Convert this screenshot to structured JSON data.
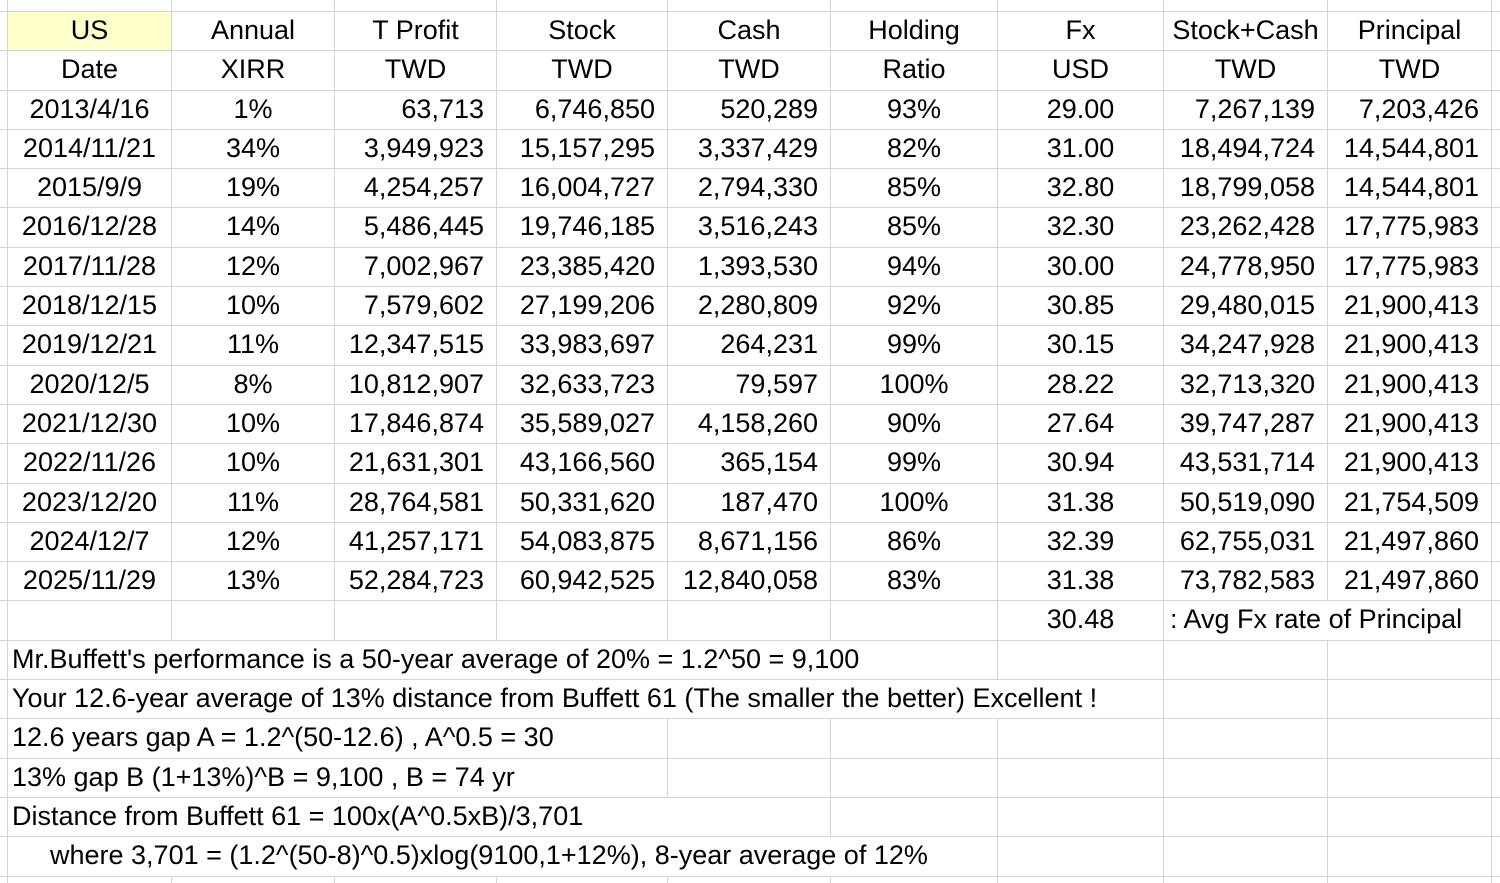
{
  "sheet": {
    "accent_yellow": "#ffffcc",
    "grid_color": "#d4d4d4",
    "header_row1": [
      "US",
      "Annual",
      "T Profit",
      "Stock",
      "Cash",
      "Holding",
      "Fx",
      "Stock+Cash",
      "Principal"
    ],
    "header_row2": [
      "Date",
      "XIRR",
      "TWD",
      "TWD",
      "TWD",
      "Ratio",
      "USD",
      "TWD",
      "TWD"
    ],
    "rows": [
      {
        "date": "2013/4/16",
        "xirr": "1%",
        "t_profit": "63,713",
        "stock": "6,746,850",
        "cash": "520,289",
        "holding_ratio": "93%",
        "fx": "29.00",
        "stock_plus_cash": "7,267,139",
        "principal": "7,203,426"
      },
      {
        "date": "2014/11/21",
        "xirr": "34%",
        "t_profit": "3,949,923",
        "stock": "15,157,295",
        "cash": "3,337,429",
        "holding_ratio": "82%",
        "fx": "31.00",
        "stock_plus_cash": "18,494,724",
        "principal": "14,544,801"
      },
      {
        "date": "2015/9/9",
        "xirr": "19%",
        "t_profit": "4,254,257",
        "stock": "16,004,727",
        "cash": "2,794,330",
        "holding_ratio": "85%",
        "fx": "32.80",
        "stock_plus_cash": "18,799,058",
        "principal": "14,544,801"
      },
      {
        "date": "2016/12/28",
        "xirr": "14%",
        "t_profit": "5,486,445",
        "stock": "19,746,185",
        "cash": "3,516,243",
        "holding_ratio": "85%",
        "fx": "32.30",
        "stock_plus_cash": "23,262,428",
        "principal": "17,775,983"
      },
      {
        "date": "2017/11/28",
        "xirr": "12%",
        "t_profit": "7,002,967",
        "stock": "23,385,420",
        "cash": "1,393,530",
        "holding_ratio": "94%",
        "fx": "30.00",
        "stock_plus_cash": "24,778,950",
        "principal": "17,775,983"
      },
      {
        "date": "2018/12/15",
        "xirr": "10%",
        "t_profit": "7,579,602",
        "stock": "27,199,206",
        "cash": "2,280,809",
        "holding_ratio": "92%",
        "fx": "30.85",
        "stock_plus_cash": "29,480,015",
        "principal": "21,900,413"
      },
      {
        "date": "2019/12/21",
        "xirr": "11%",
        "t_profit": "12,347,515",
        "stock": "33,983,697",
        "cash": "264,231",
        "holding_ratio": "99%",
        "fx": "30.15",
        "stock_plus_cash": "34,247,928",
        "principal": "21,900,413"
      },
      {
        "date": "2020/12/5",
        "xirr": "8%",
        "t_profit": "10,812,907",
        "stock": "32,633,723",
        "cash": "79,597",
        "holding_ratio": "100%",
        "fx": "28.22",
        "stock_plus_cash": "32,713,320",
        "principal": "21,900,413"
      },
      {
        "date": "2021/12/30",
        "xirr": "10%",
        "t_profit": "17,846,874",
        "stock": "35,589,027",
        "cash": "4,158,260",
        "holding_ratio": "90%",
        "fx": "27.64",
        "stock_plus_cash": "39,747,287",
        "principal": "21,900,413"
      },
      {
        "date": "2022/11/26",
        "xirr": "10%",
        "t_profit": "21,631,301",
        "stock": "43,166,560",
        "cash": "365,154",
        "holding_ratio": "99%",
        "fx": "30.94",
        "stock_plus_cash": "43,531,714",
        "principal": "21,900,413"
      },
      {
        "date": "2023/12/20",
        "xirr": "11%",
        "t_profit": "28,764,581",
        "stock": "50,331,620",
        "cash": "187,470",
        "holding_ratio": "100%",
        "fx": "31.38",
        "stock_plus_cash": "50,519,090",
        "principal": "21,754,509"
      },
      {
        "date": "2024/12/7",
        "xirr": "12%",
        "t_profit": "41,257,171",
        "stock": "54,083,875",
        "cash": "8,671,156",
        "holding_ratio": "86%",
        "fx": "32.39",
        "stock_plus_cash": "62,755,031",
        "principal": "21,497,860"
      },
      {
        "date": "2025/11/29",
        "xirr": "13%",
        "t_profit": "52,284,723",
        "stock": "60,942,525",
        "cash": "12,840,058",
        "holding_ratio": "83%",
        "fx": "31.38",
        "stock_plus_cash": "73,782,583",
        "principal": "21,497,860"
      }
    ],
    "avg_row": {
      "fx_avg": "30.48",
      "label": ": Avg Fx rate of Principal"
    },
    "notes": [
      "Mr.Buffett's performance is a 50-year average of 20% = 1.2^50 = 9,100",
      "Your 12.6-year average of 13% distance from Buffett 61 (The smaller the better) Excellent !",
      "12.6 years gap A = 1.2^(50-12.6) , A^0.5 = 30",
      "13% gap B (1+13%)^B = 9,100 , B = 74 yr",
      "Distance from Buffett 61 = 100x(A^0.5xB)/3,701",
      "where 3,701 = (1.2^(50-8)^0.5)xlog(9100,1+12%), 8-year average of 12%"
    ]
  }
}
